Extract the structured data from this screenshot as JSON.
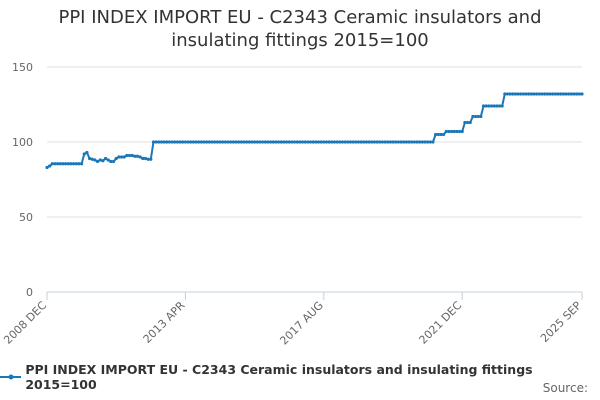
{
  "chart_data": {
    "type": "line",
    "title": "PPI INDEX IMPORT EU - C2343 Ceramic insulators and insulating fittings 2015=100",
    "source": "Source:",
    "categories": [
      "2008 DEC",
      null,
      null,
      null,
      null,
      null,
      null,
      null,
      null,
      null,
      null,
      null,
      null,
      null,
      null,
      null,
      null,
      null,
      null,
      null,
      null,
      null,
      null,
      null,
      null,
      null,
      null,
      null,
      null,
      null,
      null,
      null,
      null,
      null,
      null,
      null,
      null,
      null,
      null,
      null,
      null,
      null,
      null,
      null,
      null,
      null,
      null,
      null,
      null,
      null,
      null,
      null,
      "2013 APR",
      null,
      null,
      null,
      null,
      null,
      null,
      null,
      null,
      null,
      null,
      null,
      null,
      null,
      null,
      null,
      null,
      null,
      null,
      null,
      null,
      null,
      null,
      null,
      null,
      null,
      null,
      null,
      null,
      null,
      null,
      null,
      null,
      null,
      null,
      null,
      null,
      null,
      null,
      null,
      null,
      null,
      null,
      null,
      null,
      null,
      null,
      null,
      null,
      null,
      null,
      null,
      "2017 AUG",
      null,
      null,
      null,
      null,
      null,
      null,
      null,
      null,
      null,
      null,
      null,
      null,
      null,
      null,
      null,
      null,
      null,
      null,
      null,
      null,
      null,
      null,
      null,
      null,
      null,
      null,
      null,
      null,
      null,
      null,
      null,
      null,
      null,
      null,
      null,
      null,
      null,
      null,
      null,
      null,
      null,
      null,
      null,
      null,
      null,
      null,
      null,
      null,
      null,
      null,
      null,
      "2021 DEC",
      null,
      null,
      null,
      null,
      null,
      null,
      null,
      null,
      null,
      null,
      null,
      null,
      null,
      null,
      null,
      null,
      null,
      null,
      null,
      null,
      null,
      null,
      null,
      null,
      null,
      null,
      null,
      null,
      null,
      null,
      null,
      null,
      null,
      null,
      null,
      null,
      null,
      null,
      null,
      null,
      null,
      null,
      null,
      null,
      "2025 SEP"
    ],
    "series": [
      {
        "name": "PPI INDEX IMPORT EU - C2343 Ceramic insulators and insulating fittings 2015=100",
        "color": "#1b78b8",
        "values": [
          83,
          84,
          85.5,
          85.5,
          85.5,
          85.5,
          85.5,
          85.5,
          85.5,
          85.5,
          85.5,
          85.5,
          85.5,
          85.5,
          92,
          93,
          89,
          88.5,
          88,
          87,
          88,
          87.5,
          89,
          88,
          87,
          87,
          89,
          90,
          90,
          90,
          91,
          91,
          91,
          90.5,
          90.5,
          90,
          89,
          89,
          88.5,
          88.5,
          100,
          100,
          100,
          100,
          100,
          100,
          100,
          100,
          100,
          100,
          100,
          100,
          100,
          100,
          100,
          100,
          100,
          100,
          100,
          100,
          100,
          100,
          100,
          100,
          100,
          100,
          100,
          100,
          100,
          100,
          100,
          100,
          100,
          100,
          100,
          100,
          100,
          100,
          100,
          100,
          100,
          100,
          100,
          100,
          100,
          100,
          100,
          100,
          100,
          100,
          100,
          100,
          100,
          100,
          100,
          100,
          100,
          100,
          100,
          100,
          100,
          100,
          100,
          100,
          100,
          100,
          100,
          100,
          100,
          100,
          100,
          100,
          100,
          100,
          100,
          100,
          100,
          100,
          100,
          100,
          100,
          100,
          100,
          100,
          100,
          100,
          100,
          100,
          100,
          100,
          100,
          100,
          100,
          100,
          100,
          100,
          100,
          100,
          100,
          100,
          100,
          100,
          100,
          100,
          100,
          100,
          105,
          105,
          105,
          105,
          107,
          107,
          107,
          107,
          107,
          107,
          107,
          113,
          113,
          113,
          117,
          117,
          117,
          117,
          124,
          124,
          124,
          124,
          124,
          124,
          124,
          124,
          132,
          132,
          132,
          132,
          132,
          132,
          132,
          132,
          132,
          132,
          132,
          132,
          132,
          132,
          132,
          132,
          132,
          132,
          132,
          132,
          132,
          132,
          132,
          132,
          132,
          132,
          132,
          132,
          132,
          132
        ]
      }
    ],
    "ylim": [
      0,
      150
    ],
    "yticks": [
      0,
      50,
      100,
      150
    ],
    "grid": true
  }
}
